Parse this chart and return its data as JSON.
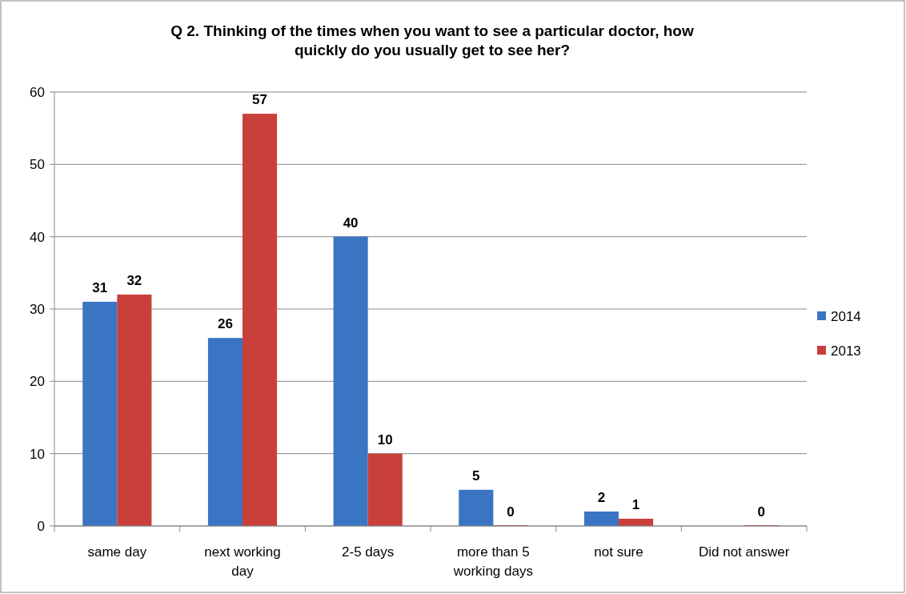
{
  "chart_data": {
    "type": "bar",
    "title": "Q 2. Thinking of the times when you want to see a particular doctor, how quickly do you usually get to see her?",
    "categories": [
      "same day",
      "next working day",
      "2-5 days",
      "more than 5 working days",
      "not sure",
      "Did not answer"
    ],
    "series": [
      {
        "name": "2014",
        "color": "#3a75c4",
        "values": [
          31,
          26,
          40,
          5,
          2,
          null
        ]
      },
      {
        "name": "2013",
        "color": "#c9403a",
        "values": [
          32,
          57,
          10,
          0,
          1,
          0
        ]
      }
    ],
    "ylim": [
      0,
      60
    ],
    "yticks": [
      0,
      10,
      20,
      30,
      40,
      50,
      60
    ],
    "grid": "y",
    "legend": "right",
    "data_labels": true
  }
}
